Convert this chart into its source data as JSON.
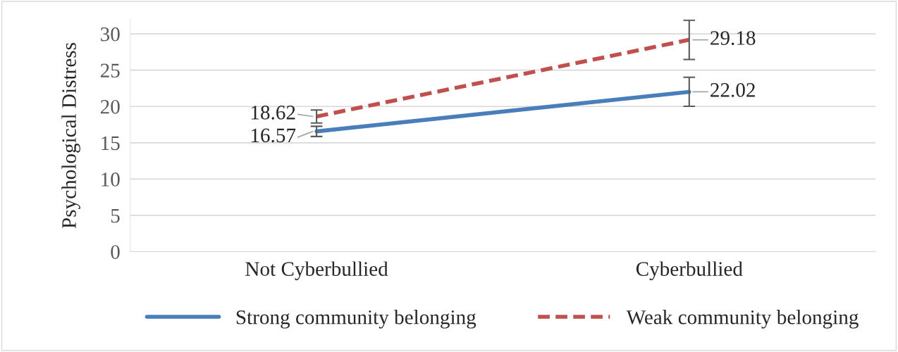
{
  "chart_data": {
    "type": "line",
    "ylabel": "Psychological Distress",
    "categories": [
      "Not Cyberbullied",
      "Cyberbullied"
    ],
    "series": [
      {
        "name": "Strong community belonging",
        "color": "#4a7ebb",
        "values": [
          16.57,
          22.02
        ],
        "errors": [
          0.7,
          2.0
        ],
        "line_style": "solid"
      },
      {
        "name": "Weak community belonging",
        "color": "#c0504d",
        "values": [
          18.62,
          29.18
        ],
        "errors": [
          0.9,
          2.7
        ],
        "line_style": "dashed"
      }
    ],
    "ylim": [
      0,
      32
    ],
    "yticks": [
      0,
      5,
      10,
      15,
      20,
      25,
      30
    ],
    "grid": "y",
    "legend": "bottom",
    "data_labels": true,
    "marker": "none"
  }
}
